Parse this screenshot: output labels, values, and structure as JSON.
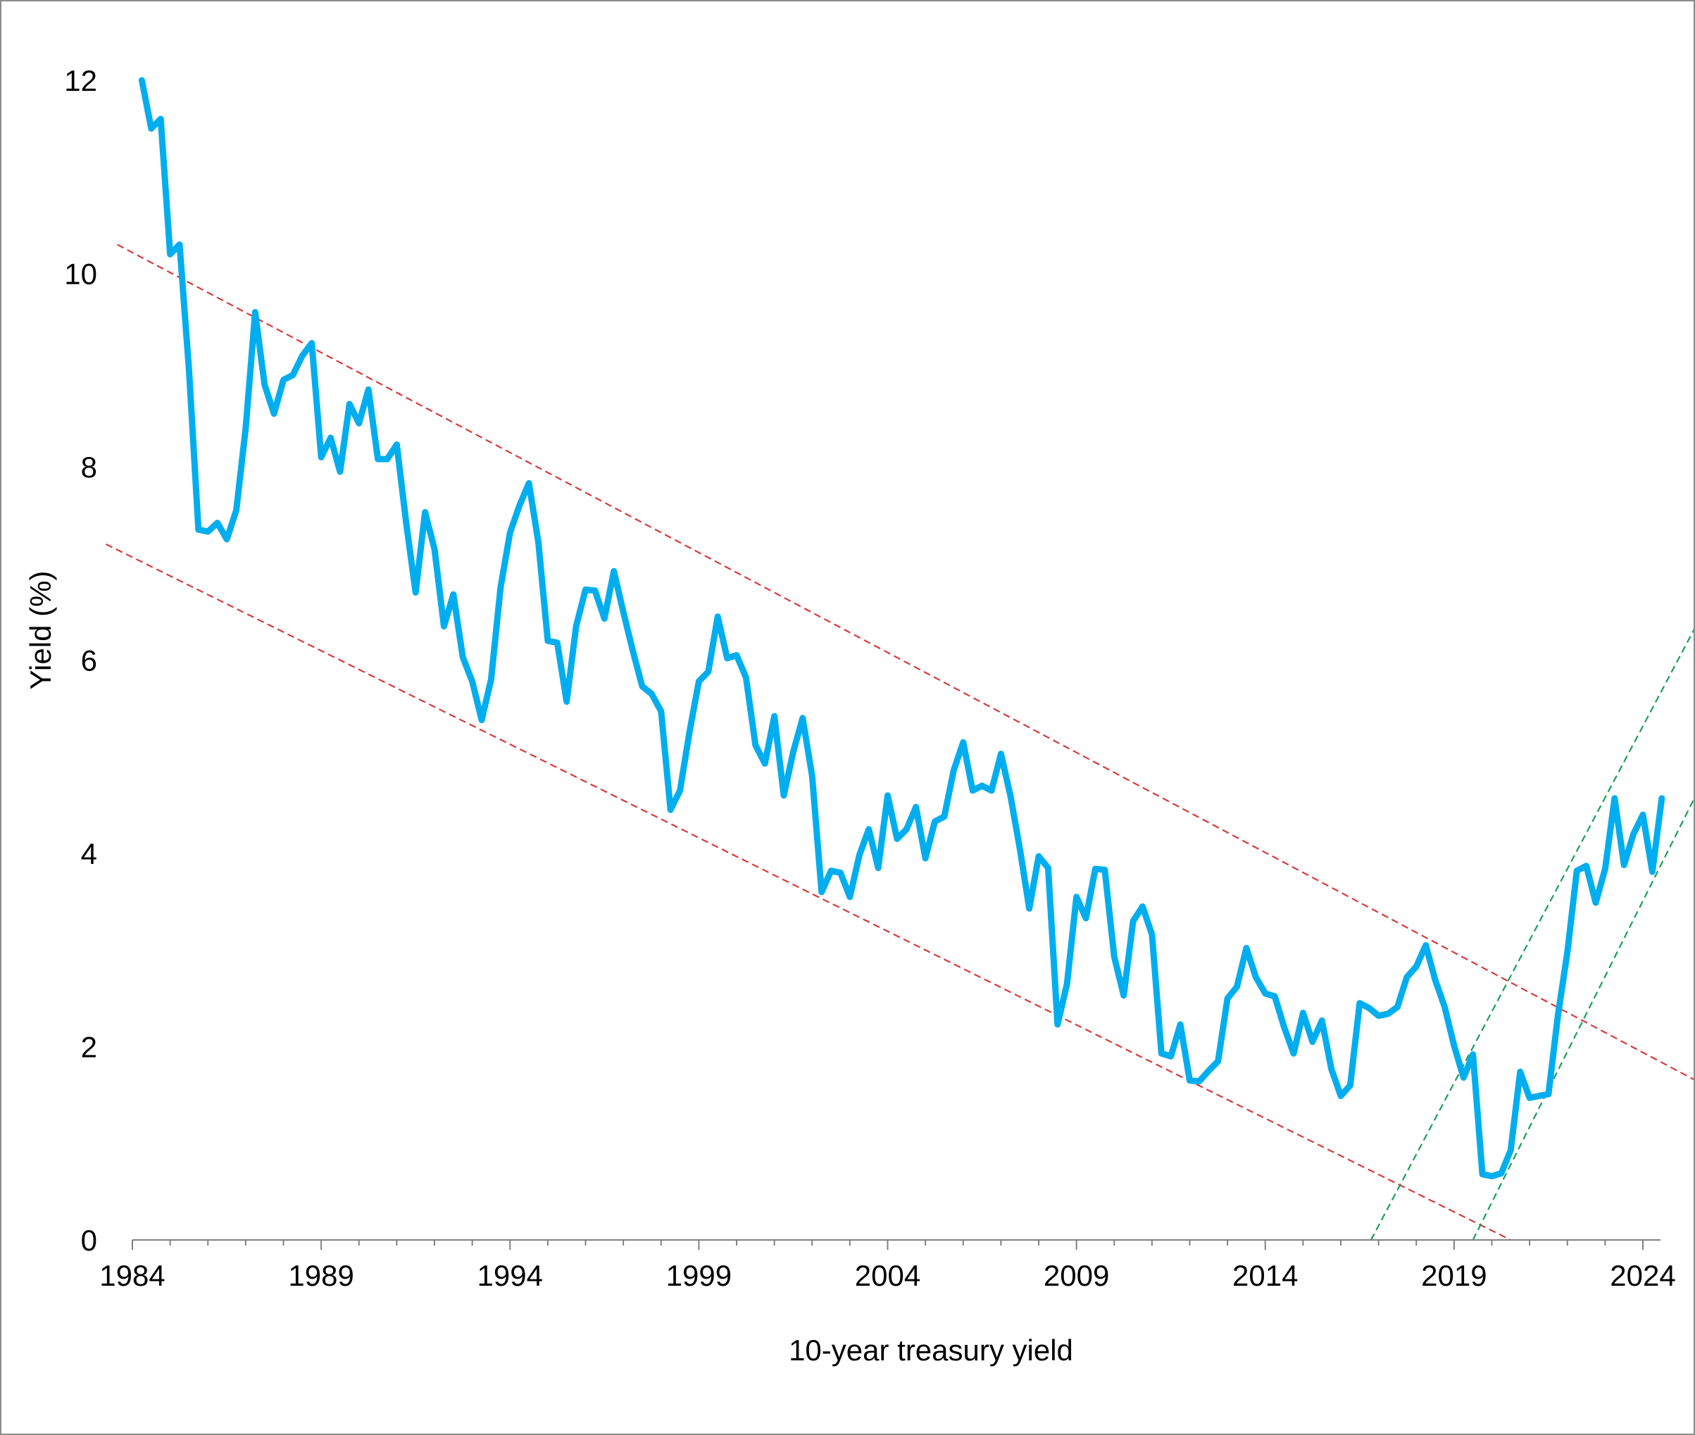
{
  "chart_data": {
    "type": "line",
    "title": "",
    "xlabel": "10-year treasury yield",
    "ylabel": "Yield (%)",
    "xlim": [
      1984,
      2024.5
    ],
    "ylim": [
      0,
      12
    ],
    "x_ticks": [
      1984,
      1989,
      1994,
      1999,
      2004,
      2009,
      2014,
      2019,
      2024
    ],
    "y_ticks": [
      0,
      2,
      4,
      6,
      8,
      10,
      12
    ],
    "grid": false,
    "legend": "none",
    "series": [
      {
        "color": "#00aeef",
        "x": [
          1984.25,
          1984.5,
          1984.75,
          1985,
          1985.25,
          1985.5,
          1985.75,
          1986,
          1986.25,
          1986.5,
          1986.75,
          1987,
          1987.25,
          1987.5,
          1987.75,
          1988,
          1988.25,
          1988.5,
          1988.75,
          1989,
          1989.25,
          1989.5,
          1989.75,
          1990,
          1990.25,
          1990.5,
          1990.75,
          1991,
          1991.25,
          1991.5,
          1991.75,
          1992,
          1992.25,
          1992.5,
          1992.75,
          1993,
          1993.25,
          1993.5,
          1993.75,
          1994,
          1994.25,
          1994.5,
          1994.75,
          1995,
          1995.25,
          1995.5,
          1995.75,
          1996,
          1996.25,
          1996.5,
          1996.75,
          1997,
          1997.25,
          1997.5,
          1997.75,
          1998,
          1998.25,
          1998.5,
          1998.75,
          1999,
          1999.25,
          1999.5,
          1999.75,
          2000,
          2000.25,
          2000.5,
          2000.75,
          2001,
          2001.25,
          2001.5,
          2001.75,
          2002,
          2002.25,
          2002.5,
          2002.75,
          2003,
          2003.25,
          2003.5,
          2003.75,
          2004,
          2004.25,
          2004.5,
          2004.75,
          2005,
          2005.25,
          2005.5,
          2005.75,
          2006,
          2006.25,
          2006.5,
          2006.75,
          2007,
          2007.25,
          2007.5,
          2007.75,
          2008,
          2008.25,
          2008.5,
          2008.75,
          2009,
          2009.25,
          2009.5,
          2009.75,
          2010,
          2010.25,
          2010.5,
          2010.75,
          2011,
          2011.25,
          2011.5,
          2011.75,
          2012,
          2012.25,
          2012.5,
          2012.75,
          2013,
          2013.25,
          2013.5,
          2013.75,
          2014,
          2014.25,
          2014.5,
          2014.75,
          2015,
          2015.25,
          2015.5,
          2015.75,
          2016,
          2016.25,
          2016.5,
          2016.75,
          2017,
          2017.25,
          2017.5,
          2017.75,
          2018,
          2018.25,
          2018.5,
          2018.75,
          2019,
          2019.25,
          2019.5,
          2019.75,
          2020,
          2020.25,
          2020.5,
          2020.75,
          2021,
          2021.25,
          2021.5,
          2021.75,
          2022,
          2022.25,
          2022.5,
          2022.75,
          2023,
          2023.25,
          2023.5,
          2023.75,
          2024,
          2024.25,
          2024.5
        ],
        "y": [
          12.0,
          11.5,
          11.6,
          10.2,
          10.3,
          9.0,
          7.35,
          7.33,
          7.42,
          7.25,
          7.55,
          8.4,
          9.6,
          8.85,
          8.55,
          8.9,
          8.95,
          9.15,
          9.28,
          8.1,
          8.3,
          7.95,
          8.65,
          8.45,
          8.8,
          8.08,
          8.08,
          8.23,
          7.42,
          6.7,
          7.53,
          7.15,
          6.35,
          6.68,
          6.03,
          5.78,
          5.38,
          5.8,
          6.75,
          7.32,
          7.6,
          7.83,
          7.22,
          6.2,
          6.18,
          5.57,
          6.35,
          6.73,
          6.72,
          6.43,
          6.92,
          6.5,
          6.1,
          5.73,
          5.65,
          5.47,
          4.45,
          4.65,
          5.25,
          5.78,
          5.88,
          6.45,
          6.02,
          6.05,
          5.82,
          5.12,
          4.93,
          5.42,
          4.6,
          5.05,
          5.4,
          4.8,
          3.6,
          3.82,
          3.8,
          3.55,
          3.98,
          4.25,
          3.85,
          4.6,
          4.15,
          4.25,
          4.48,
          3.95,
          4.33,
          4.38,
          4.86,
          5.15,
          4.65,
          4.7,
          4.65,
          5.03,
          4.6,
          4.05,
          3.43,
          3.97,
          3.85,
          2.23,
          2.65,
          3.55,
          3.33,
          3.84,
          3.83,
          2.93,
          2.53,
          3.3,
          3.45,
          3.16,
          1.93,
          1.9,
          2.23,
          1.65,
          1.64,
          1.75,
          1.85,
          2.5,
          2.62,
          3.02,
          2.72,
          2.55,
          2.52,
          2.2,
          1.93,
          2.35,
          2.05,
          2.27,
          1.77,
          1.49,
          1.6,
          2.45,
          2.4,
          2.32,
          2.34,
          2.41,
          2.72,
          2.83,
          3.05,
          2.69,
          2.41,
          2.01,
          1.68,
          1.92,
          0.68,
          0.66,
          0.69,
          0.93,
          1.74,
          1.47,
          1.49,
          1.51,
          2.32,
          2.98,
          3.82,
          3.87,
          3.49,
          3.84,
          4.57,
          3.88,
          4.2,
          4.4,
          3.81,
          4.57
        ]
      }
    ],
    "trend_lines": [
      {
        "color": "#d93a3a",
        "style": "dashed",
        "x": [
          1983.6,
          2025.4
        ],
        "y": [
          10.3,
          1.65
        ]
      },
      {
        "color": "#d93a3a",
        "style": "dashed",
        "x": [
          1983.3,
          2020.5
        ],
        "y": [
          7.2,
          0
        ]
      },
      {
        "color": "#1a9e5c",
        "style": "dashed",
        "x": [
          2016.8,
          2025.4
        ],
        "y": [
          0,
          6.35
        ]
      },
      {
        "color": "#1a9e5c",
        "style": "dashed",
        "x": [
          2019.5,
          2025.4
        ],
        "y": [
          0,
          4.6
        ]
      }
    ]
  }
}
